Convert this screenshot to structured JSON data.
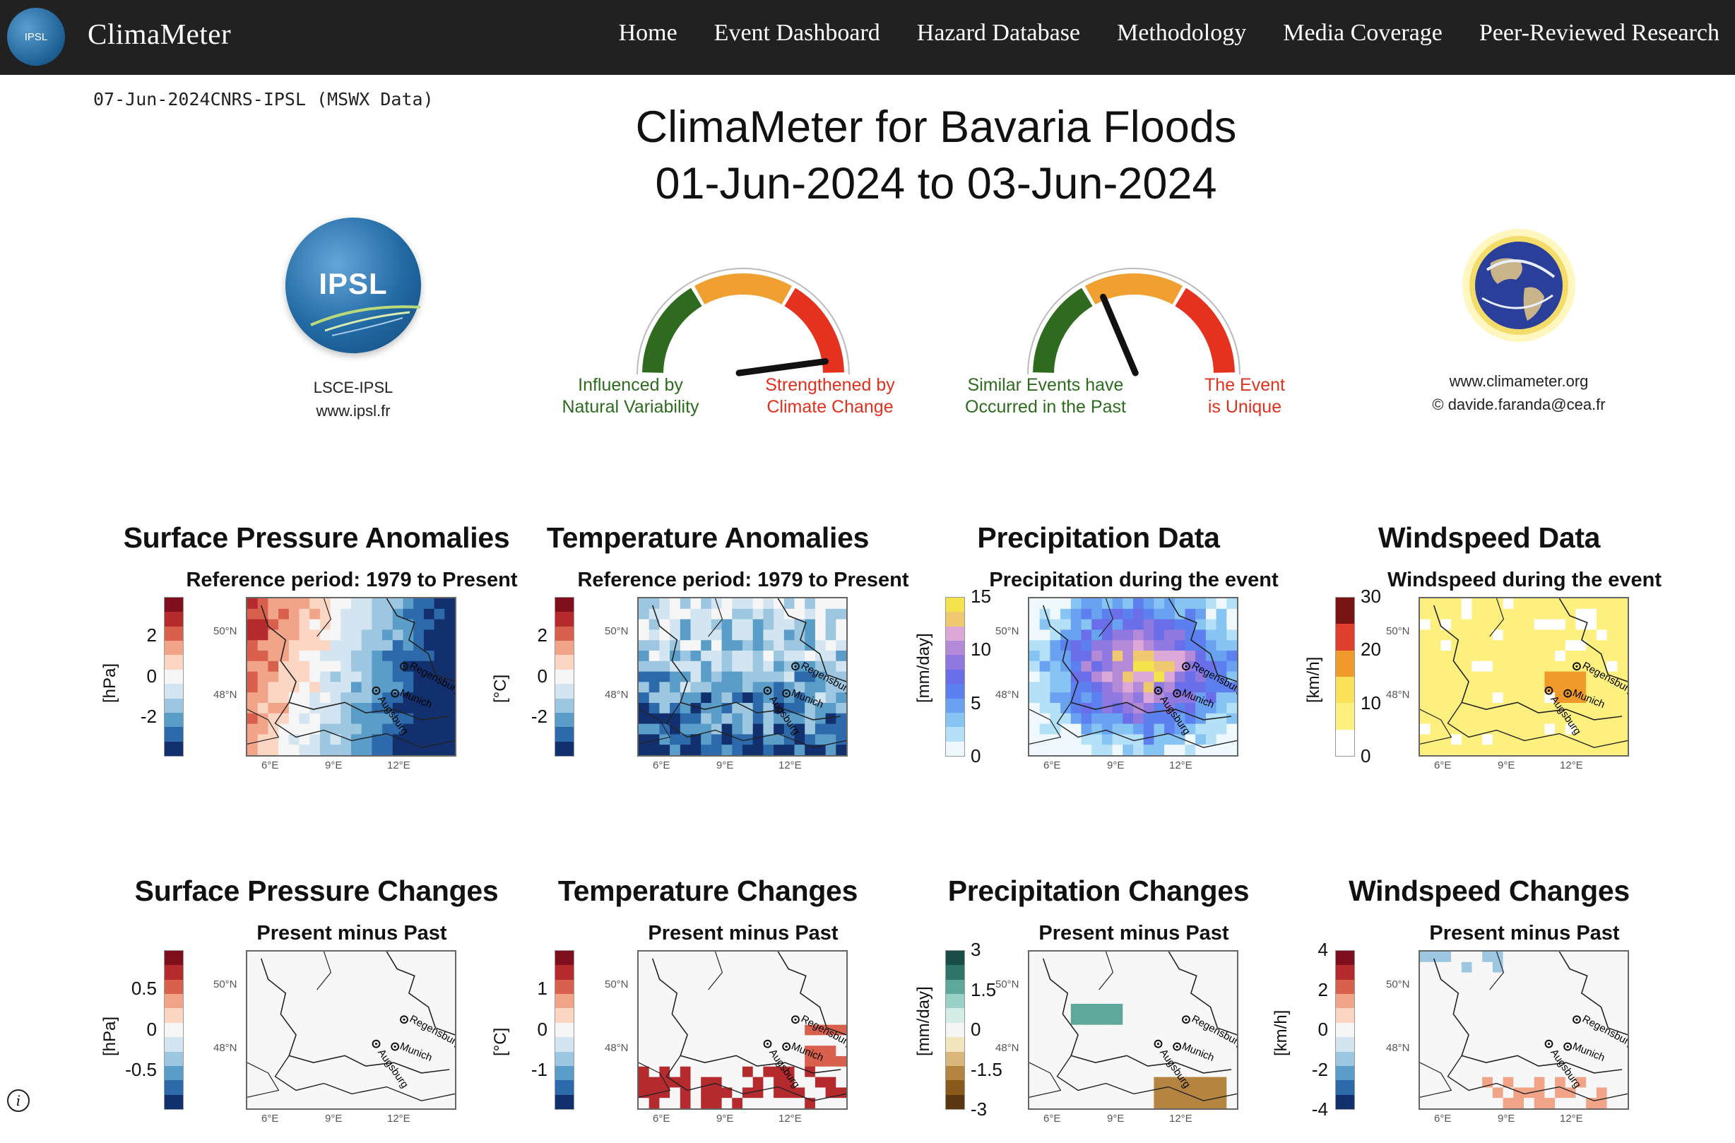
{
  "nav": {
    "logo_text": "IPSL",
    "brand": "ClimaMeter",
    "links": [
      "Home",
      "Event Dashboard",
      "Hazard Database",
      "Methodology",
      "Media Coverage",
      "Peer-Reviewed Research"
    ]
  },
  "header": {
    "date_source": "07-Jun-2024CNRS-IPSL (MSWX Data)",
    "title_line1": "ClimaMeter for Bavaria Floods",
    "title_line2": "01-Jun-2024 to 03-Jun-2024"
  },
  "logos": {
    "ipsl_text": "IPSL",
    "ipsl_caption_1": "LSCE-IPSL",
    "ipsl_caption_2": "www.ipsl.fr",
    "cm_caption_1": "www.climameter.org",
    "cm_caption_2": "© davide.faranda@cea.fr"
  },
  "gauges": [
    {
      "left_label_1": "Influenced by",
      "left_label_2": "Natural Variability",
      "right_label_1": "Strengthened by",
      "right_label_2": "Climate Change",
      "needle_level": 0.95
    },
    {
      "left_label_1": "Similar Events have",
      "left_label_2": "Occurred in the Past",
      "right_label_1": "The Event",
      "right_label_2": "is Unique",
      "needle_level": 0.38
    }
  ],
  "panels_row1": [
    {
      "title": "Surface Pressure Anomalies",
      "subtitle": "Reference period: 1979 to Present",
      "unit": "[hPa]",
      "ticks": [
        "2",
        "0",
        "-2"
      ],
      "palette": "rdbu"
    },
    {
      "title": "Temperature Anomalies",
      "subtitle": "Reference period: 1979 to Present",
      "unit": "[°C]",
      "ticks": [
        "2",
        "0",
        "-2"
      ],
      "palette": "rdbu"
    },
    {
      "title": "Precipitation Data",
      "subtitle": "Precipitation during the event",
      "unit": "[mm/day]",
      "ticks": [
        "15",
        "10",
        "5",
        "0"
      ],
      "palette": "precip"
    },
    {
      "title": "Windspeed Data",
      "subtitle": "Windspeed during the event",
      "unit": "[km/h]",
      "ticks": [
        "30",
        "20",
        "10",
        "0"
      ],
      "palette": "wind"
    }
  ],
  "panels_row2": [
    {
      "title": "Surface Pressure Changes",
      "subtitle": "Present minus Past",
      "unit": "[hPa]",
      "ticks": [
        "0.5",
        "0",
        "-0.5"
      ],
      "palette": "rdbu"
    },
    {
      "title": "Temperature Changes",
      "subtitle": "Present minus Past",
      "unit": "[°C]",
      "ticks": [
        "1",
        "0",
        "-1"
      ],
      "palette": "rdbu"
    },
    {
      "title": "Precipitation Changes",
      "subtitle": "Present minus Past",
      "unit": "[mm/day]",
      "ticks": [
        "3",
        "1.5",
        "0",
        "-1.5",
        "-3"
      ],
      "palette": "brbg"
    },
    {
      "title": "Windspeed Changes",
      "subtitle": "Present minus Past",
      "unit": "[km/h]",
      "ticks": [
        "4",
        "2",
        "0",
        "-2",
        "-4"
      ],
      "palette": "rdbu"
    }
  ],
  "map_labels": {
    "lat1": "50°N",
    "lat2": "48°N",
    "lon1": "6°E",
    "lon2": "9°E",
    "lon3": "12°E",
    "city1": "Regensburg",
    "city2": "Munich",
    "city3": "Augsburg"
  },
  "colors": {
    "nav_bg": "#212121",
    "gauge_green": "#2e6b1f",
    "gauge_orange": "#f0a030",
    "gauge_red": "#e4321f"
  },
  "info_icon": "i"
}
